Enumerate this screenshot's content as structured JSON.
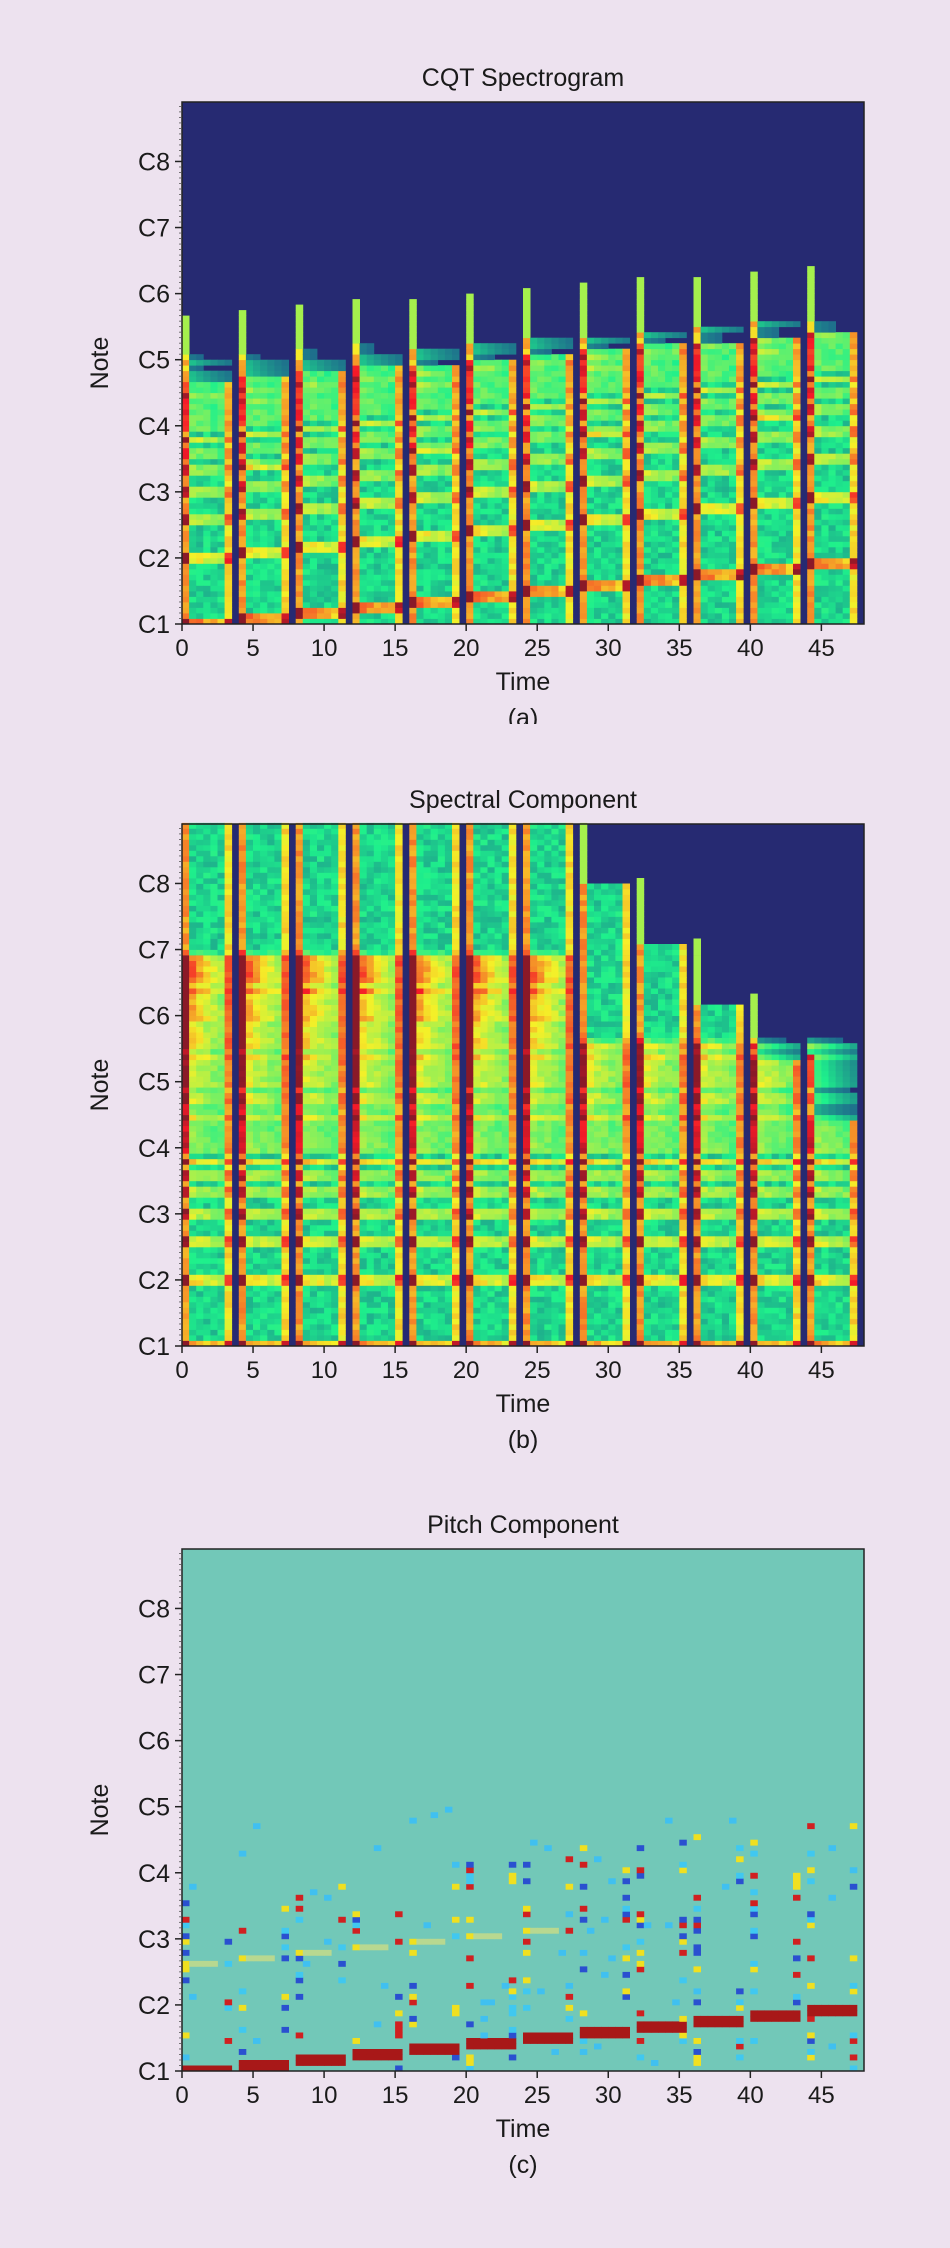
{
  "colors": {
    "background": "#ede2ef",
    "low": "#262a72",
    "pitch_background": "#72c8b8"
  },
  "chart_data": [
    {
      "type": "heatmap",
      "title": "CQT Spectrogram",
      "xlabel": "Time",
      "ylabel": "Note",
      "caption": "(a)",
      "colormap": "jet",
      "xlim": [
        0,
        48
      ],
      "ylim": [
        "C1",
        "C8+"
      ],
      "xticks": [
        "0",
        "5",
        "10",
        "15",
        "20",
        "25",
        "30",
        "35",
        "40",
        "45"
      ],
      "yticks": [
        "C1",
        "C2",
        "C3",
        "C4",
        "C5",
        "C6",
        "C7",
        "C8"
      ],
      "note_onsets": [
        0,
        4,
        8,
        12,
        16,
        20,
        24,
        28,
        32,
        36,
        40,
        44
      ],
      "note_pitch_octaves": [
        1.0,
        1.08,
        1.17,
        1.25,
        1.33,
        1.42,
        1.5,
        1.58,
        1.67,
        1.75,
        1.83,
        1.92
      ]
    },
    {
      "type": "heatmap",
      "title": "Spectral Component",
      "xlabel": "Time",
      "ylabel": "Note",
      "caption": "(b)",
      "colormap": "jet",
      "xlim": [
        0,
        48
      ],
      "ylim": [
        "C1",
        "C8+"
      ],
      "xticks": [
        "0",
        "5",
        "10",
        "15",
        "20",
        "25",
        "30",
        "35",
        "40",
        "45"
      ],
      "yticks": [
        "C1",
        "C2",
        "C3",
        "C4",
        "C5",
        "C6",
        "C7",
        "C8"
      ],
      "note_onsets": [
        0,
        4,
        8,
        12,
        16,
        20,
        24,
        28,
        32,
        36,
        40,
        44
      ]
    },
    {
      "type": "heatmap",
      "title": "Pitch Component",
      "xlabel": "Time",
      "ylabel": "Note",
      "caption": "(c)",
      "colormap": "jet",
      "xlim": [
        0,
        48
      ],
      "ylim": [
        "C1",
        "C8+"
      ],
      "xticks": [
        "0",
        "5",
        "10",
        "15",
        "20",
        "25",
        "30",
        "35",
        "40",
        "45"
      ],
      "yticks": [
        "C1",
        "C2",
        "C3",
        "C4",
        "C5",
        "C6",
        "C7",
        "C8"
      ],
      "note_onsets": [
        0,
        4,
        8,
        12,
        16,
        20,
        24,
        28,
        32,
        36,
        40,
        44
      ],
      "note_pitch_octaves": [
        1.0,
        1.08,
        1.17,
        1.25,
        1.33,
        1.42,
        1.5,
        1.58,
        1.67,
        1.75,
        1.83,
        1.92
      ]
    }
  ]
}
